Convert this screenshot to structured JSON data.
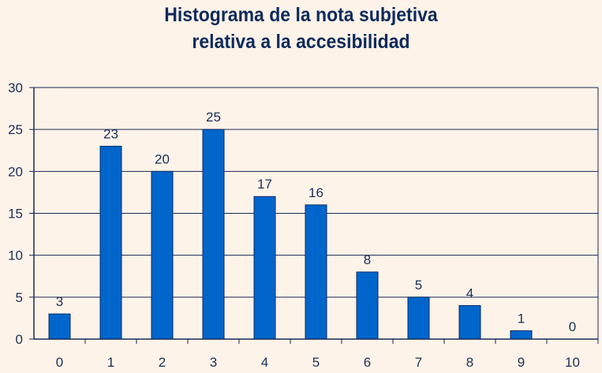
{
  "chart_data": {
    "type": "bar",
    "title_lines": [
      "Histograma de la nota subjetiva",
      "relativa a la accesibilidad"
    ],
    "categories": [
      "0",
      "1",
      "2",
      "3",
      "4",
      "5",
      "6",
      "7",
      "8",
      "9",
      "10"
    ],
    "values": [
      3,
      23,
      20,
      25,
      17,
      16,
      8,
      5,
      4,
      1,
      0
    ],
    "ylim": [
      0,
      30
    ],
    "yticks": [
      0,
      5,
      10,
      15,
      20,
      25,
      30
    ],
    "xlabel": "",
    "ylabel": "",
    "grid": true,
    "legend": "none",
    "bar_color": "#0066cc",
    "data_labels": true
  }
}
